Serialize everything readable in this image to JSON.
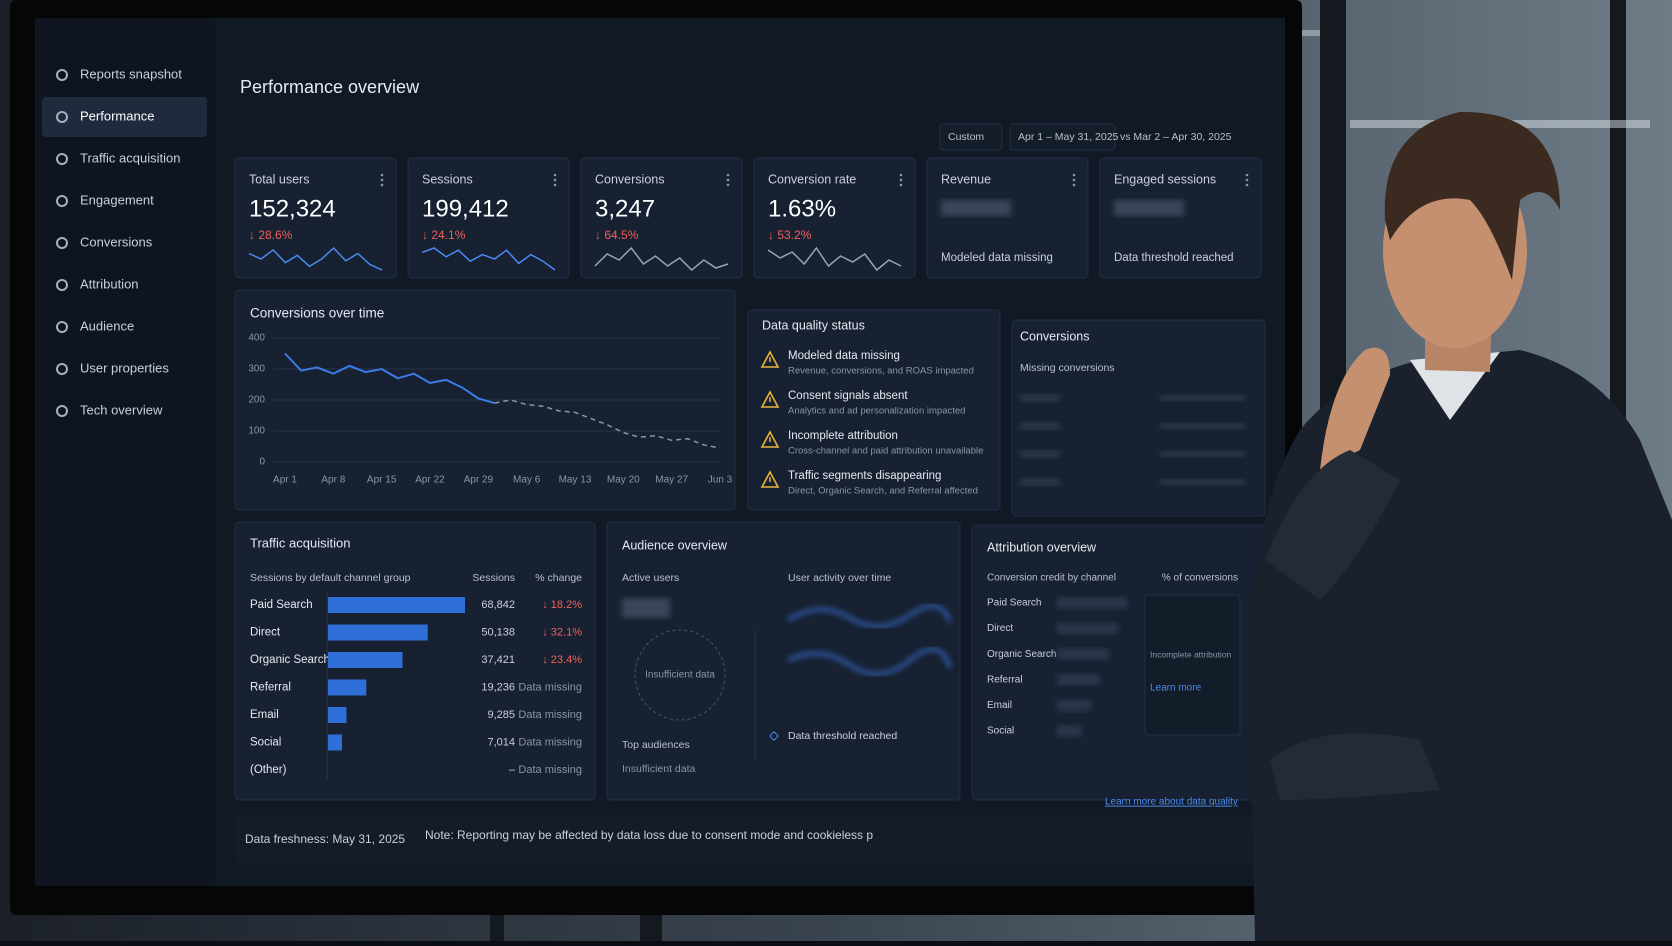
{
  "sidebar": {
    "items": [
      "Reports snapshot",
      "Performance",
      "Traffic acquisition",
      "Engagement",
      "Conversions",
      "Attribution",
      "Audience",
      "User properties",
      "Tech overview"
    ],
    "active": 1
  },
  "header": {
    "title": "Performance overview",
    "filters": [
      "Custom",
      "Apr 1 – May 31, 2025",
      "vs Mar 2 – Apr 30, 2025"
    ]
  },
  "kpis": [
    {
      "label": "Total users",
      "value": "152,324",
      "change": "↓ 28.6%",
      "trend": [
        50,
        47,
        52,
        45,
        49,
        43,
        47,
        53,
        46,
        50,
        44,
        41
      ]
    },
    {
      "label": "Sessions",
      "value": "199,412",
      "change": "↓ 24.1%",
      "trend": [
        48,
        50,
        46,
        49,
        44,
        47,
        45,
        49,
        43,
        47,
        44,
        40
      ]
    },
    {
      "label": "Conversions",
      "value": "3,247",
      "change": "↓ 64.5%",
      "trend": [
        40,
        46,
        43,
        49,
        41,
        45,
        40,
        44,
        38,
        43,
        39,
        41
      ]
    },
    {
      "label": "Conversion rate",
      "value": "1.63%",
      "change": "↓ 53.2%",
      "trend": [
        47,
        43,
        46,
        40,
        48,
        39,
        44,
        41,
        45,
        37,
        42,
        39
      ]
    },
    {
      "label": "Revenue",
      "note": "Modeled data missing"
    },
    {
      "label": "Engaged sessions",
      "note": "Data threshold reached"
    }
  ],
  "chart_data": {
    "type": "line",
    "title": "Conversions over time",
    "categories": [
      "Apr 1",
      null,
      null,
      "Apr 8",
      null,
      null,
      "Apr 15",
      null,
      null,
      "Apr 22",
      null,
      null,
      "Apr 29",
      null,
      null,
      "May 6",
      null,
      null,
      "May 13",
      null,
      null,
      "May 20",
      null,
      null,
      "May 27",
      null,
      null,
      "Jun 3"
    ],
    "series": [
      {
        "color": "#3b7be8",
        "dash": false,
        "values": [
          350,
          295,
          305,
          285,
          310,
          290,
          300,
          270,
          285,
          255,
          265,
          240,
          205,
          190,
          null,
          null,
          null,
          null,
          null,
          null,
          null,
          null,
          null,
          null,
          null,
          null,
          null,
          null
        ]
      },
      {
        "color": "#8b95a7",
        "dash": true,
        "values": [
          null,
          null,
          null,
          null,
          null,
          null,
          null,
          null,
          null,
          null,
          null,
          null,
          null,
          190,
          200,
          185,
          180,
          165,
          160,
          140,
          120,
          95,
          80,
          85,
          70,
          75,
          55,
          45
        ]
      }
    ],
    "ylim": [
      0,
      400
    ],
    "yticks": [
      0,
      100,
      200,
      300,
      400
    ],
    "grid": true
  },
  "data_quality": {
    "title": "Data quality status",
    "items": [
      {
        "title": "Modeled data missing",
        "detail": "Revenue, conversions, and ROAS impacted"
      },
      {
        "title": "Consent signals absent",
        "detail": "Analytics and ad personalization impacted"
      },
      {
        "title": "Incomplete attribution",
        "detail": "Cross-channel and paid attribution unavailable"
      },
      {
        "title": "Traffic segments disappearing",
        "detail": "Direct, Organic Search, and Referral affected"
      }
    ]
  },
  "conversions_panel": {
    "title": "Conversions",
    "subtitle": "Missing conversions"
  },
  "traffic": {
    "title": "Traffic acquisition",
    "columns": [
      "Sessions by default channel group",
      "Sessions",
      "% change"
    ],
    "categories": [
      "Paid Search",
      "Direct",
      "Organic Search",
      "Referral",
      "Email",
      "Social",
      "(Other)"
    ],
    "values": [
      68842,
      50138,
      37421,
      19236,
      9285,
      7014,
      null
    ],
    "value_labels": [
      "68,842",
      "50,138",
      "37,421",
      "19,236",
      "9,285",
      "7,014",
      "–"
    ],
    "changes": [
      "↓ 18.2%",
      "↓ 32.1%",
      "↓ 23.4%",
      "Data missing",
      "Data missing",
      "Data missing",
      "Data missing"
    ],
    "color": "#2f6fd8"
  },
  "audience": {
    "title": "Audience overview",
    "active_users": "Active users",
    "circle_note": "Insufficient data",
    "activity": "User activity over time",
    "threshold": "Data threshold reached",
    "top": "Top audiences",
    "top_note": "Insufficient data"
  },
  "attribution": {
    "title": "Attribution overview",
    "subtitle": "Conversion credit by channel",
    "column": "% of conversions",
    "channels": [
      "Paid Search",
      "Direct",
      "Organic Search",
      "Referral",
      "Email",
      "Social"
    ],
    "note": "Incomplete attribution",
    "link": "Learn more"
  },
  "footer": {
    "freshness": "Data freshness: May 31, 2025",
    "note": "Note: Reporting may be affected by data loss due to consent mode and cookieless p",
    "link": "Learn more about data quality"
  }
}
